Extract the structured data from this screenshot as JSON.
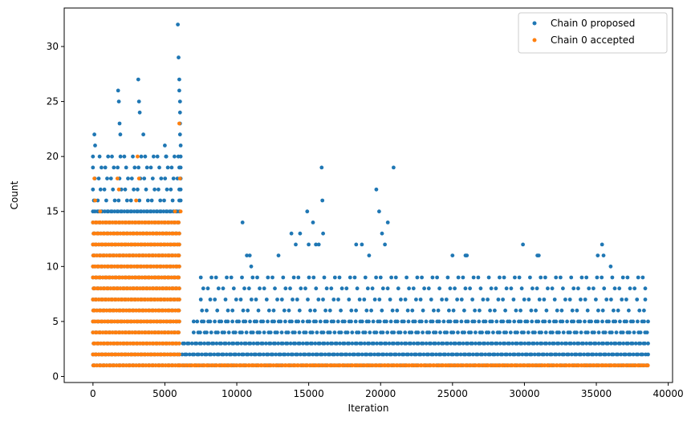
{
  "chart_data": {
    "type": "scatter",
    "xlabel": "Iteration",
    "ylabel": "Count",
    "xlim": [
      -2000,
      40300
    ],
    "ylim": [
      -0.55,
      33.5
    ],
    "xticks": [
      0,
      5000,
      10000,
      15000,
      20000,
      25000,
      30000,
      35000,
      40000
    ],
    "yticks": [
      0,
      5,
      10,
      15,
      20,
      25,
      30
    ],
    "legend_position": "top-right",
    "grid": false,
    "series": [
      {
        "name": "Chain 0 proposed",
        "color": "#1f77b4",
        "bands": [
          {
            "x": [
              0,
              6000
            ],
            "levels": [
              1,
              2,
              3,
              4,
              5,
              6,
              7,
              8,
              9,
              10,
              11,
              12,
              13,
              14,
              15
            ],
            "count": 45
          },
          {
            "x": [
              0,
              6000
            ],
            "levels": [
              16,
              17,
              18,
              19,
              20
            ],
            "count": 14
          },
          {
            "x": [
              6200,
              38600
            ],
            "levels": [
              1,
              2,
              3
            ],
            "count": 190
          },
          {
            "x": [
              7000,
              38600
            ],
            "levels": [
              4,
              5
            ],
            "count": 130
          },
          {
            "x": [
              7500,
              38400
            ],
            "levels": [
              6,
              7,
              8,
              9
            ],
            "count": 55
          }
        ],
        "points": [
          {
            "x": 100,
            "y": 22
          },
          {
            "x": 150,
            "y": 21
          },
          {
            "x": 1750,
            "y": 26
          },
          {
            "x": 1800,
            "y": 25
          },
          {
            "x": 1850,
            "y": 23
          },
          {
            "x": 1900,
            "y": 22
          },
          {
            "x": 3150,
            "y": 27
          },
          {
            "x": 3200,
            "y": 25
          },
          {
            "x": 3250,
            "y": 24
          },
          {
            "x": 3500,
            "y": 22
          },
          {
            "x": 5000,
            "y": 21
          },
          {
            "x": 5100,
            "y": 20
          },
          {
            "x": 5900,
            "y": 32
          },
          {
            "x": 5950,
            "y": 29
          },
          {
            "x": 6000,
            "y": 27
          },
          {
            "x": 6000,
            "y": 26
          },
          {
            "x": 6050,
            "y": 25
          },
          {
            "x": 6050,
            "y": 24
          },
          {
            "x": 6050,
            "y": 23
          },
          {
            "x": 6050,
            "y": 22
          },
          {
            "x": 6100,
            "y": 21
          },
          {
            "x": 6100,
            "y": 20
          },
          {
            "x": 6100,
            "y": 19
          },
          {
            "x": 6100,
            "y": 18
          },
          {
            "x": 6100,
            "y": 17
          },
          {
            "x": 6100,
            "y": 16
          },
          {
            "x": 10400,
            "y": 14
          },
          {
            "x": 10700,
            "y": 11
          },
          {
            "x": 10900,
            "y": 11
          },
          {
            "x": 11000,
            "y": 10
          },
          {
            "x": 12900,
            "y": 11
          },
          {
            "x": 13800,
            "y": 13
          },
          {
            "x": 14100,
            "y": 12
          },
          {
            "x": 14400,
            "y": 13
          },
          {
            "x": 14900,
            "y": 15
          },
          {
            "x": 15000,
            "y": 12
          },
          {
            "x": 15300,
            "y": 14
          },
          {
            "x": 15500,
            "y": 12
          },
          {
            "x": 15700,
            "y": 12
          },
          {
            "x": 15900,
            "y": 19
          },
          {
            "x": 15950,
            "y": 16
          },
          {
            "x": 16000,
            "y": 13
          },
          {
            "x": 18300,
            "y": 12
          },
          {
            "x": 18700,
            "y": 12
          },
          {
            "x": 19200,
            "y": 11
          },
          {
            "x": 19700,
            "y": 17
          },
          {
            "x": 19900,
            "y": 15
          },
          {
            "x": 20100,
            "y": 13
          },
          {
            "x": 20300,
            "y": 12
          },
          {
            "x": 20500,
            "y": 14
          },
          {
            "x": 20900,
            "y": 19
          },
          {
            "x": 25000,
            "y": 11
          },
          {
            "x": 25900,
            "y": 11
          },
          {
            "x": 26000,
            "y": 11
          },
          {
            "x": 29900,
            "y": 12
          },
          {
            "x": 30900,
            "y": 11
          },
          {
            "x": 31000,
            "y": 11
          },
          {
            "x": 35400,
            "y": 12
          },
          {
            "x": 35500,
            "y": 11
          },
          {
            "x": 35100,
            "y": 11
          },
          {
            "x": 36000,
            "y": 10
          }
        ]
      },
      {
        "name": "Chain 0 accepted",
        "color": "#ff7f0e",
        "bands": [
          {
            "x": [
              0,
              6000
            ],
            "levels": [
              1,
              2,
              3,
              4,
              5,
              6,
              7,
              8,
              9,
              10,
              11,
              12,
              13,
              14
            ],
            "count": 45
          },
          {
            "x": [
              6000,
              38600
            ],
            "levels": [
              1
            ],
            "count": 260
          }
        ],
        "points": [
          {
            "x": 100,
            "y": 18
          },
          {
            "x": 150,
            "y": 16
          },
          {
            "x": 500,
            "y": 15
          },
          {
            "x": 1700,
            "y": 18
          },
          {
            "x": 1800,
            "y": 17
          },
          {
            "x": 3000,
            "y": 16
          },
          {
            "x": 3100,
            "y": 20
          },
          {
            "x": 3200,
            "y": 18
          },
          {
            "x": 5700,
            "y": 15
          },
          {
            "x": 6000,
            "y": 23
          },
          {
            "x": 6050,
            "y": 18
          },
          {
            "x": 6100,
            "y": 15
          }
        ]
      }
    ]
  }
}
